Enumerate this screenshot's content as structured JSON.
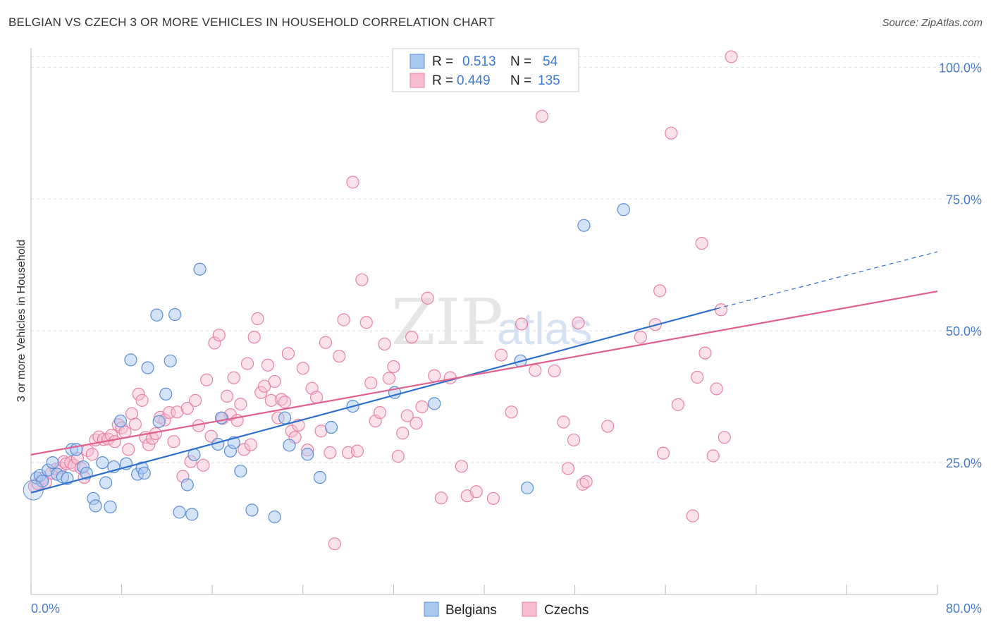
{
  "header": {
    "title": "BELGIAN VS CZECH 3 OR MORE VEHICLES IN HOUSEHOLD CORRELATION CHART",
    "source": "Source: ZipAtlas.com"
  },
  "legend_box": {
    "rows": [
      {
        "r_label": "R =",
        "r_value": "0.513",
        "n_label": "N =",
        "n_value": "54"
      },
      {
        "r_label": "R =",
        "r_value": "0.449",
        "n_label": "N =",
        "n_value": "135"
      }
    ]
  },
  "bottom_legend": {
    "items": [
      "Belgians",
      "Czechs"
    ]
  },
  "watermark": {
    "zip": "ZIP",
    "atlas": "atlas"
  },
  "colors": {
    "belgians_fill": "#a9c8f0",
    "belgians_stroke": "#5b8fd6",
    "belgians_line": "#2e6fcc",
    "czechs_fill": "#f7bcd0",
    "czechs_stroke": "#e882a6",
    "czechs_line": "#e0608e",
    "tick_text": "#4a7cc9",
    "grid": "#dddddd"
  },
  "chart_data": {
    "type": "scatter",
    "title": "BELGIAN VS CZECH 3 OR MORE VEHICLES IN HOUSEHOLD CORRELATION CHART",
    "xlabel": "",
    "ylabel": "3 or more Vehicles in Household",
    "xlim": [
      0,
      80
    ],
    "ylim": [
      0,
      105
    ],
    "x_tick_labels": [
      "0.0%",
      "80.0%"
    ],
    "y_ticks": [
      25,
      50,
      75,
      100
    ],
    "y_tick_labels": [
      "25.0%",
      "50.0%",
      "75.0%",
      "100.0%"
    ],
    "grid": true,
    "legend_position": "top-center",
    "series": [
      {
        "name": "Belgians",
        "R": 0.513,
        "N": 54,
        "trend": {
          "x0": 0,
          "y0": 19.3,
          "x1": 60.5,
          "y1": 54.2,
          "dashed_to_x": 80,
          "dashed_to_y": 65.0
        },
        "points": [
          [
            0.5,
            22.1
          ],
          [
            0.8,
            22.6
          ],
          [
            1.0,
            21.5
          ],
          [
            1.5,
            23.6
          ],
          [
            1.9,
            25.0
          ],
          [
            2.3,
            22.8
          ],
          [
            2.8,
            22.3
          ],
          [
            3.2,
            22.0
          ],
          [
            3.6,
            27.5
          ],
          [
            4.0,
            27.5
          ],
          [
            4.6,
            24.2
          ],
          [
            4.9,
            23.0
          ],
          [
            5.5,
            18.2
          ],
          [
            5.7,
            16.8
          ],
          [
            6.3,
            25.0
          ],
          [
            6.6,
            21.2
          ],
          [
            7.0,
            16.6
          ],
          [
            7.3,
            24.2
          ],
          [
            7.9,
            32.9
          ],
          [
            8.4,
            24.8
          ],
          [
            8.8,
            44.5
          ],
          [
            9.4,
            22.8
          ],
          [
            9.8,
            24.0
          ],
          [
            10.0,
            23.0
          ],
          [
            10.3,
            43.0
          ],
          [
            11.1,
            53.0
          ],
          [
            11.3,
            32.8
          ],
          [
            11.9,
            38.0
          ],
          [
            12.3,
            44.3
          ],
          [
            12.7,
            53.1
          ],
          [
            13.1,
            15.6
          ],
          [
            13.8,
            20.8
          ],
          [
            14.2,
            15.2
          ],
          [
            14.4,
            26.5
          ],
          [
            14.9,
            61.7
          ],
          [
            16.5,
            28.5
          ],
          [
            16.8,
            33.5
          ],
          [
            17.6,
            27.2
          ],
          [
            17.9,
            28.8
          ],
          [
            18.5,
            23.4
          ],
          [
            19.5,
            16.0
          ],
          [
            21.5,
            14.7
          ],
          [
            22.4,
            33.5
          ],
          [
            22.8,
            28.3
          ],
          [
            24.4,
            26.6
          ],
          [
            25.5,
            22.2
          ],
          [
            26.5,
            31.7
          ],
          [
            28.4,
            35.7
          ],
          [
            32.1,
            38.3
          ],
          [
            35.6,
            36.2
          ],
          [
            43.2,
            44.3
          ],
          [
            43.8,
            20.2
          ],
          [
            48.8,
            70.0
          ],
          [
            52.3,
            73.0
          ]
        ]
      },
      {
        "name": "Czechs",
        "R": 0.449,
        "N": 135,
        "trend": {
          "x0": 0,
          "y0": 26.5,
          "x1": 80,
          "y1": 57.5
        },
        "points": [
          [
            0.3,
            20.5
          ],
          [
            0.6,
            21.0
          ],
          [
            1.0,
            22.0
          ],
          [
            1.3,
            21.3
          ],
          [
            1.8,
            23.0
          ],
          [
            2.2,
            23.8
          ],
          [
            2.6,
            24.0
          ],
          [
            2.9,
            25.2
          ],
          [
            3.1,
            24.8
          ],
          [
            3.5,
            25.0
          ],
          [
            3.8,
            24.5
          ],
          [
            4.1,
            25.8
          ],
          [
            4.4,
            24.0
          ],
          [
            4.7,
            22.2
          ],
          [
            5.0,
            27.3
          ],
          [
            5.4,
            26.6
          ],
          [
            5.7,
            29.3
          ],
          [
            6.0,
            29.9
          ],
          [
            6.4,
            29.4
          ],
          [
            6.8,
            29.5
          ],
          [
            7.1,
            30.2
          ],
          [
            7.4,
            29.0
          ],
          [
            7.7,
            32.2
          ],
          [
            8.0,
            31.6
          ],
          [
            8.3,
            30.8
          ],
          [
            8.6,
            27.5
          ],
          [
            8.9,
            34.3
          ],
          [
            9.2,
            32.3
          ],
          [
            9.5,
            38.0
          ],
          [
            9.8,
            36.8
          ],
          [
            10.1,
            29.8
          ],
          [
            10.4,
            28.4
          ],
          [
            10.7,
            29.6
          ],
          [
            11.0,
            30.5
          ],
          [
            11.4,
            33.6
          ],
          [
            11.8,
            33.1
          ],
          [
            12.2,
            34.5
          ],
          [
            12.6,
            29.0
          ],
          [
            12.9,
            34.6
          ],
          [
            13.4,
            22.4
          ],
          [
            13.8,
            35.3
          ],
          [
            14.1,
            25.2
          ],
          [
            14.5,
            36.8
          ],
          [
            14.8,
            32.0
          ],
          [
            15.2,
            24.5
          ],
          [
            15.5,
            40.7
          ],
          [
            15.9,
            30.0
          ],
          [
            16.2,
            47.7
          ],
          [
            16.6,
            49.2
          ],
          [
            16.9,
            33.4
          ],
          [
            17.3,
            37.6
          ],
          [
            17.6,
            34.1
          ],
          [
            17.9,
            41.1
          ],
          [
            18.2,
            33.0
          ],
          [
            18.5,
            36.1
          ],
          [
            18.8,
            27.5
          ],
          [
            19.1,
            43.8
          ],
          [
            19.4,
            28.4
          ],
          [
            19.7,
            48.8
          ],
          [
            20.0,
            52.3
          ],
          [
            20.3,
            38.3
          ],
          [
            20.6,
            39.5
          ],
          [
            20.9,
            43.5
          ],
          [
            21.2,
            36.8
          ],
          [
            21.5,
            40.4
          ],
          [
            21.8,
            33.5
          ],
          [
            22.1,
            37.0
          ],
          [
            22.4,
            36.5
          ],
          [
            22.7,
            45.7
          ],
          [
            23.0,
            31.0
          ],
          [
            23.3,
            29.8
          ],
          [
            23.6,
            32.1
          ],
          [
            24.0,
            42.9
          ],
          [
            24.4,
            27.4
          ],
          [
            24.8,
            39.1
          ],
          [
            25.2,
            37.4
          ],
          [
            25.6,
            31.0
          ],
          [
            26.0,
            47.8
          ],
          [
            26.4,
            26.9
          ],
          [
            26.8,
            9.6
          ],
          [
            27.2,
            45.2
          ],
          [
            27.6,
            52.1
          ],
          [
            28.0,
            26.9
          ],
          [
            28.4,
            78.2
          ],
          [
            28.8,
            27.2
          ],
          [
            29.2,
            59.7
          ],
          [
            29.6,
            51.6
          ],
          [
            30.0,
            40.1
          ],
          [
            30.4,
            32.9
          ],
          [
            30.8,
            34.5
          ],
          [
            31.2,
            47.5
          ],
          [
            31.6,
            41.0
          ],
          [
            32.0,
            43.2
          ],
          [
            32.4,
            26.2
          ],
          [
            32.8,
            30.6
          ],
          [
            33.2,
            33.9
          ],
          [
            33.6,
            48.8
          ],
          [
            34.0,
            32.5
          ],
          [
            34.5,
            35.6
          ],
          [
            35.0,
            56.2
          ],
          [
            35.6,
            41.5
          ],
          [
            36.2,
            18.3
          ],
          [
            37.0,
            41.1
          ],
          [
            38.0,
            24.3
          ],
          [
            38.5,
            18.7
          ],
          [
            39.3,
            19.5
          ],
          [
            40.8,
            18.2
          ],
          [
            41.5,
            45.4
          ],
          [
            42.4,
            34.6
          ],
          [
            43.3,
            51.3
          ],
          [
            44.5,
            42.5
          ],
          [
            45.1,
            90.7
          ],
          [
            46.2,
            42.4
          ],
          [
            47.0,
            32.7
          ],
          [
            47.4,
            23.9
          ],
          [
            47.9,
            29.3
          ],
          [
            48.3,
            51.5
          ],
          [
            48.7,
            20.9
          ],
          [
            49.0,
            21.4
          ],
          [
            50.9,
            31.9
          ],
          [
            55.1,
            51.2
          ],
          [
            55.8,
            26.8
          ],
          [
            55.5,
            57.6
          ],
          [
            56.5,
            87.5
          ],
          [
            58.4,
            14.9
          ],
          [
            59.2,
            66.6
          ],
          [
            60.9,
            54.0
          ],
          [
            61.8,
            102.0
          ],
          [
            60.2,
            26.3
          ],
          [
            58.8,
            41.2
          ],
          [
            53.8,
            48.8
          ],
          [
            57.1,
            36.0
          ],
          [
            59.5,
            45.8
          ],
          [
            60.5,
            39.0
          ],
          [
            61.2,
            29.8
          ]
        ]
      }
    ]
  }
}
